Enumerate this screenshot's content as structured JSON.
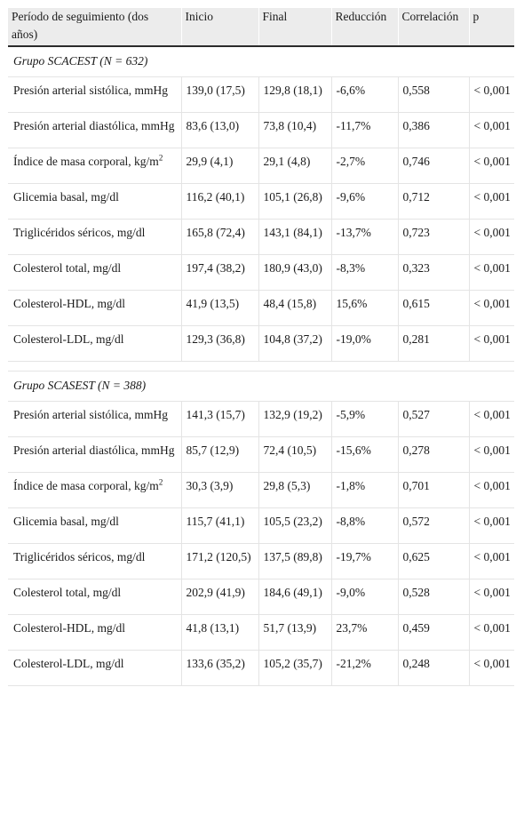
{
  "headers": [
    "Período de seguimiento (dos años)",
    "Inicio",
    "Final",
    "Reducción",
    "Correlación",
    "p"
  ],
  "groups": [
    {
      "title": "Grupo SCACEST (N = 632)",
      "rows": [
        {
          "label": "Presión arterial sistólica, mmHg",
          "inicio": "139,0 (17,5)",
          "final": "129,8 (18,1)",
          "reduccion": "-6,6%",
          "correlacion": "0,558",
          "p": "< 0,001"
        },
        {
          "label": "Presión arterial diastólica, mmHg",
          "inicio": "83,6 (13,0)",
          "final": "73,8 (10,4)",
          "reduccion": "-11,7%",
          "correlacion": "0,386",
          "p": "< 0,001"
        },
        {
          "label": "Índice de masa corporal, kg/m",
          "label_sup": "2",
          "inicio": "29,9 (4,1)",
          "final": "29,1 (4,8)",
          "reduccion": "-2,7%",
          "correlacion": "0,746",
          "p": "< 0,001"
        },
        {
          "label": "Glicemia basal, mg/dl",
          "inicio": "116,2 (40,1)",
          "final": "105,1 (26,8)",
          "reduccion": "-9,6%",
          "correlacion": "0,712",
          "p": "< 0,001"
        },
        {
          "label": "Triglicéridos séricos, mg/dl",
          "inicio": "165,8 (72,4)",
          "final": "143,1 (84,1)",
          "reduccion": "-13,7%",
          "correlacion": "0,723",
          "p": "< 0,001"
        },
        {
          "label": "Colesterol total, mg/dl",
          "inicio": "197,4 (38,2)",
          "final": "180,9 (43,0)",
          "reduccion": "-8,3%",
          "correlacion": "0,323",
          "p": "< 0,001"
        },
        {
          "label": "Colesterol-HDL, mg/dl",
          "inicio": "41,9 (13,5)",
          "final": "48,4 (15,8)",
          "reduccion": "15,6%",
          "correlacion": "0,615",
          "p": "< 0,001"
        },
        {
          "label": "Colesterol-LDL, mg/dl",
          "inicio": "129,3 (36,8)",
          "final": "104,8 (37,2)",
          "reduccion": "-19,0%",
          "correlacion": "0,281",
          "p": "< 0,001"
        }
      ]
    },
    {
      "title": "Grupo SCASEST (N = 388)",
      "rows": [
        {
          "label": "Presión arterial sistólica, mmHg",
          "inicio": "141,3 (15,7)",
          "final": "132,9 (19,2)",
          "reduccion": "-5,9%",
          "correlacion": "0,527",
          "p": "< 0,001"
        },
        {
          "label": "Presión arterial diastólica, mmHg",
          "inicio": "85,7 (12,9)",
          "final": "72,4 (10,5)",
          "reduccion": "-15,6%",
          "correlacion": "0,278",
          "p": "< 0,001"
        },
        {
          "label": "Índice de masa corporal, kg/m",
          "label_sup": "2",
          "inicio": "30,3 (3,9)",
          "final": "29,8 (5,3)",
          "reduccion": "-1,8%",
          "correlacion": "0,701",
          "p": "< 0,001"
        },
        {
          "label": "Glicemia basal, mg/dl",
          "inicio": "115,7 (41,1)",
          "final": "105,5 (23,2)",
          "reduccion": "-8,8%",
          "correlacion": "0,572",
          "p": "< 0,001"
        },
        {
          "label": "Triglicéridos séricos, mg/dl",
          "inicio": "171,2 (120,5)",
          "final": "137,5 (89,8)",
          "reduccion": "-19,7%",
          "correlacion": "0,625",
          "p": "< 0,001"
        },
        {
          "label": "Colesterol total, mg/dl",
          "inicio": "202,9 (41,9)",
          "final": "184,6 (49,1)",
          "reduccion": "-9,0%",
          "correlacion": "0,528",
          "p": "< 0,001"
        },
        {
          "label": "Colesterol-HDL, mg/dl",
          "inicio": "41,8 (13,1)",
          "final": "51,7 (13,9)",
          "reduccion": "23,7%",
          "correlacion": "0,459",
          "p": "< 0,001"
        },
        {
          "label": "Colesterol-LDL, mg/dl",
          "inicio": "133,6 (35,2)",
          "final": "105,2 (35,7)",
          "reduccion": "-21,2%",
          "correlacion": "0,248",
          "p": "< 0,001"
        }
      ]
    }
  ]
}
